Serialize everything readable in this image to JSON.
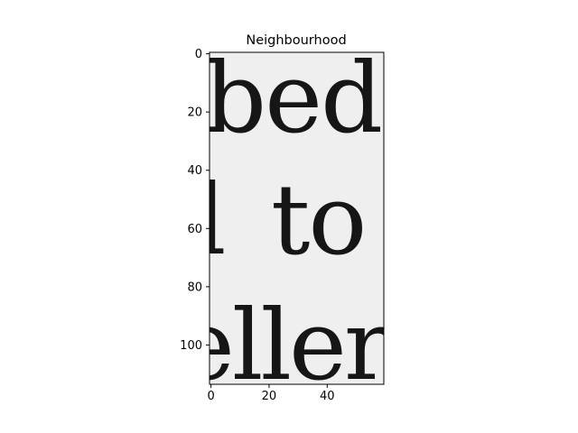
{
  "chart_data": {
    "type": "image",
    "title": "Neighbourhood",
    "xlabel": "",
    "ylabel": "",
    "xlim": [
      -0.5,
      59.5
    ],
    "ylim": [
      113.5,
      -0.5
    ],
    "x_ticks": [
      0,
      20,
      40
    ],
    "y_ticks": [
      0,
      20,
      40,
      60,
      80,
      100
    ],
    "grid": false,
    "colormap": "gray",
    "background_color": "#efefef",
    "glyph_color": "#161616"
  },
  "image_text": {
    "line1": "bed",
    "line2_left": "l",
    "line2_right": "to",
    "line3": "eller"
  }
}
